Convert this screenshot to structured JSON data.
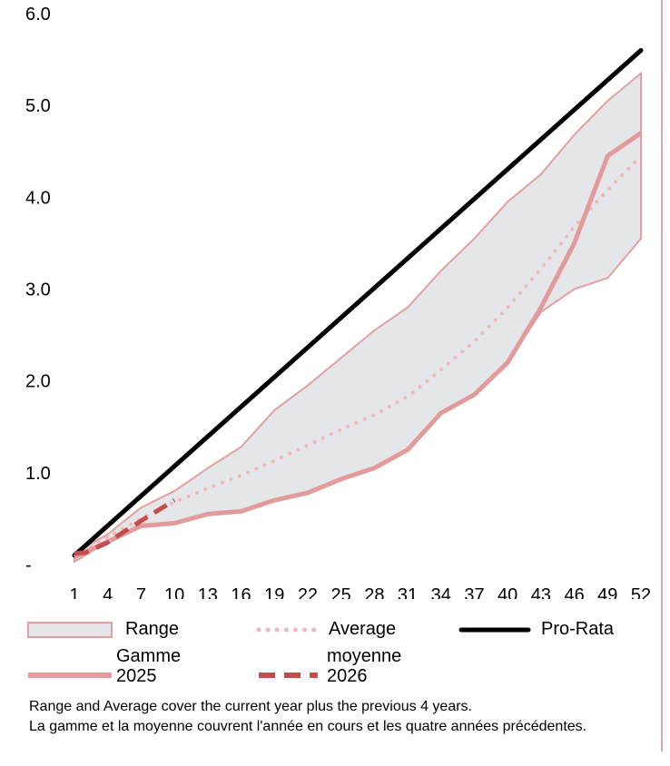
{
  "chart_data": {
    "type": "line",
    "y_tick_labels": [
      "-",
      "1.0",
      "2.0",
      "3.0",
      "4.0",
      "5.0",
      "6.0"
    ],
    "ylim": [
      0,
      6
    ],
    "x_tick_labels": [
      "1",
      "4",
      "7",
      "10",
      "13",
      "16",
      "19",
      "22",
      "25",
      "28",
      "31",
      "34",
      "37",
      "40",
      "43",
      "46",
      "49",
      "52"
    ],
    "xlim": [
      1,
      52
    ],
    "series": [
      {
        "name": "Range",
        "kind": "band",
        "color": "#e3a0a0",
        "fill": "#e4e6ea",
        "x": [
          1,
          4,
          7,
          10,
          13,
          16,
          19,
          22,
          25,
          28,
          31,
          34,
          37,
          40,
          43,
          46,
          49,
          52
        ],
        "upper": [
          0.12,
          0.33,
          0.62,
          0.8,
          1.05,
          1.28,
          1.68,
          1.95,
          2.25,
          2.55,
          2.8,
          3.2,
          3.55,
          3.95,
          4.25,
          4.68,
          5.05,
          5.35
        ],
        "lower": [
          0.03,
          0.25,
          0.42,
          0.45,
          0.55,
          0.58,
          0.7,
          0.78,
          0.93,
          1.05,
          1.25,
          1.65,
          1.85,
          2.2,
          2.75,
          3.0,
          3.12,
          3.55
        ]
      },
      {
        "name": "Average",
        "kind": "dotted",
        "color": "#f0b8b8",
        "x": [
          1,
          4,
          7,
          10,
          13,
          16,
          19,
          22,
          25,
          28,
          31,
          34,
          37,
          40,
          43,
          46,
          49,
          52
        ],
        "values": [
          0.1,
          0.3,
          0.5,
          0.68,
          0.83,
          0.97,
          1.13,
          1.3,
          1.47,
          1.63,
          1.83,
          2.12,
          2.43,
          2.8,
          3.22,
          3.68,
          4.08,
          4.45
        ]
      },
      {
        "name": "Pro-Rata",
        "kind": "solid",
        "color": "#000000",
        "x": [
          1,
          52
        ],
        "values": [
          0.1,
          5.6
        ]
      },
      {
        "name": "Gamme 2025",
        "kind": "solid",
        "color": "#e39a9a",
        "x": [
          1,
          4,
          7,
          10,
          13,
          16,
          19,
          22,
          25,
          28,
          31,
          34,
          37,
          40,
          43,
          46,
          49,
          52
        ],
        "values": [
          0.08,
          0.25,
          0.42,
          0.45,
          0.55,
          0.58,
          0.7,
          0.78,
          0.93,
          1.05,
          1.25,
          1.65,
          1.85,
          2.2,
          2.8,
          3.5,
          4.45,
          4.7
        ]
      },
      {
        "name": "moyenne 2026",
        "kind": "dashed",
        "color": "#c44d4d",
        "x": [
          1,
          2,
          4,
          6,
          8,
          10
        ],
        "values": [
          0.12,
          0.13,
          0.24,
          0.4,
          0.55,
          0.7
        ]
      }
    ]
  },
  "legend": {
    "range": "Range",
    "average": "Average",
    "prorata": "Pro-Rata",
    "gamme": "Gamme",
    "year_2025": "2025",
    "moyenne": "moyenne",
    "year_2026": "2026"
  },
  "footnote": {
    "line1": "Range and Average cover the current year plus the previous 4 years.",
    "line2": "La gamme et la moyenne couvrent l'année en cours et les quatre années précédentes."
  },
  "colors": {
    "axis_border": "#d9a7a7"
  }
}
